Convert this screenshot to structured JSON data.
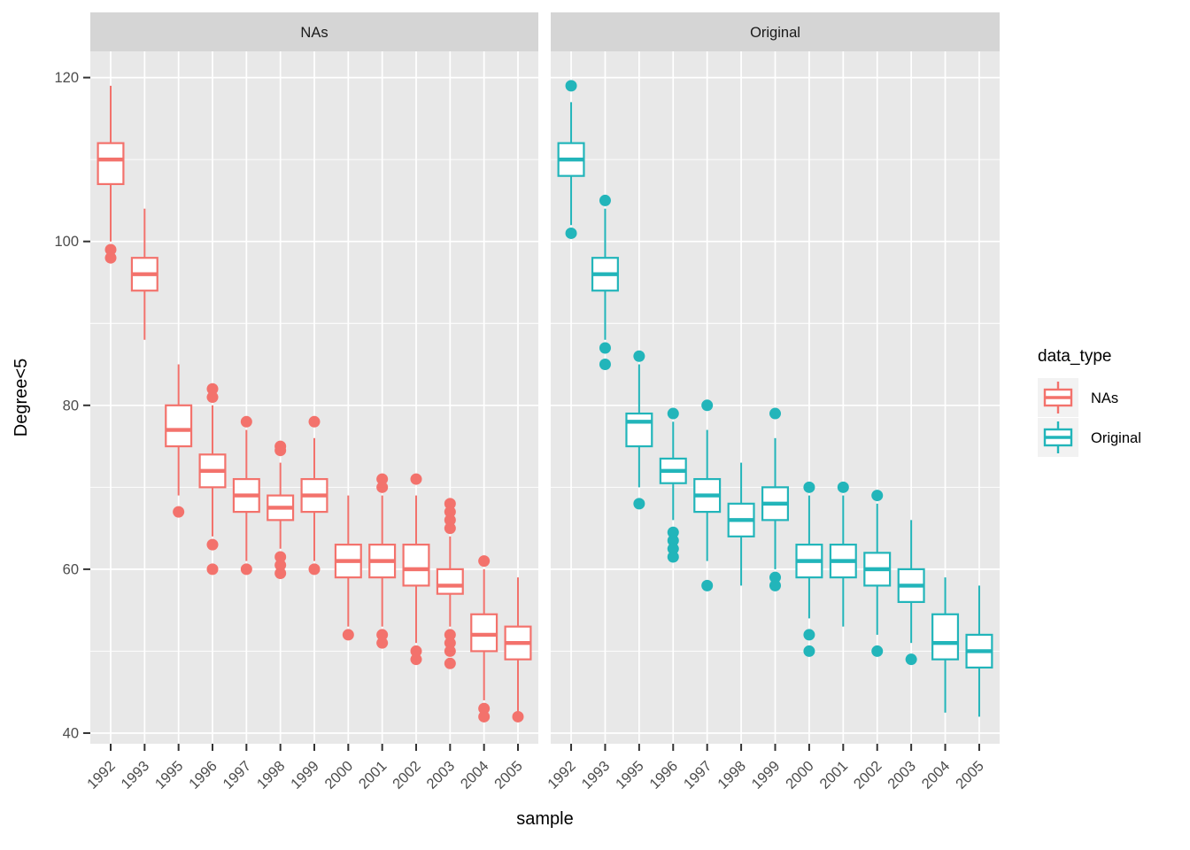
{
  "figure": {
    "background": "#ffffff"
  },
  "chart_data": {
    "type": "boxplot",
    "xlabel": "sample",
    "ylabel": "Degree<5",
    "categories": [
      "1992",
      "1993",
      "1995",
      "1996",
      "1997",
      "1998",
      "1999",
      "2000",
      "2001",
      "2002",
      "2003",
      "2004",
      "2005"
    ],
    "y_ticks": [
      40,
      60,
      80,
      100,
      120
    ],
    "y_minor_ticks": [
      50,
      70,
      90,
      110
    ],
    "ylim": [
      38.7,
      123.2
    ],
    "grid": "on",
    "legend_position": "right",
    "legend": {
      "title": "data_type",
      "entries": [
        {
          "label": "NAs",
          "color": "#F3726C"
        },
        {
          "label": "Original",
          "color": "#22B5BA"
        }
      ]
    },
    "facets": [
      {
        "label": "NAs",
        "color": "#F3726C",
        "boxes": [
          {
            "category": "1992",
            "low": 100,
            "q1": 107,
            "median": 110,
            "q3": 112,
            "high": 119,
            "outliers": [
              99,
              98
            ]
          },
          {
            "category": "1993",
            "low": 88,
            "q1": 94,
            "median": 96,
            "q3": 98,
            "high": 104,
            "outliers": []
          },
          {
            "category": "1995",
            "low": 69,
            "q1": 75,
            "median": 77,
            "q3": 80,
            "high": 85,
            "outliers": [
              67
            ]
          },
          {
            "category": "1996",
            "low": 64,
            "q1": 70,
            "median": 72,
            "q3": 74,
            "high": 80,
            "outliers": [
              82,
              81,
              63,
              60
            ]
          },
          {
            "category": "1997",
            "low": 61,
            "q1": 67,
            "median": 69,
            "q3": 71,
            "high": 77,
            "outliers": [
              78,
              60
            ]
          },
          {
            "category": "1998",
            "low": 62.5,
            "q1": 66,
            "median": 67.5,
            "q3": 69,
            "high": 73,
            "outliers": [
              75,
              74.5,
              61.5,
              60.5,
              59.5
            ]
          },
          {
            "category": "1999",
            "low": 61,
            "q1": 67,
            "median": 69,
            "q3": 71,
            "high": 76,
            "outliers": [
              78,
              60
            ]
          },
          {
            "category": "2000",
            "low": 53,
            "q1": 59,
            "median": 61,
            "q3": 63,
            "high": 69,
            "outliers": [
              52
            ]
          },
          {
            "category": "2001",
            "low": 53,
            "q1": 59,
            "median": 61,
            "q3": 63,
            "high": 69,
            "outliers": [
              71,
              70,
              52,
              51
            ]
          },
          {
            "category": "2002",
            "low": 51,
            "q1": 58,
            "median": 60,
            "q3": 63,
            "high": 69,
            "outliers": [
              71,
              50,
              49
            ]
          },
          {
            "category": "2003",
            "low": 53,
            "q1": 57,
            "median": 58,
            "q3": 60,
            "high": 64,
            "outliers": [
              68,
              67,
              66,
              65,
              52,
              51,
              50,
              48.5
            ]
          },
          {
            "category": "2004",
            "low": 44,
            "q1": 50,
            "median": 52,
            "q3": 54.5,
            "high": 60,
            "outliers": [
              61,
              43,
              42
            ]
          },
          {
            "category": "2005",
            "low": 42.5,
            "q1": 49,
            "median": 51,
            "q3": 53,
            "high": 59,
            "outliers": [
              42
            ]
          }
        ]
      },
      {
        "label": "Original",
        "color": "#22B5BA",
        "boxes": [
          {
            "category": "1992",
            "low": 102,
            "q1": 108,
            "median": 110,
            "q3": 112,
            "high": 117,
            "outliers": [
              119,
              101
            ]
          },
          {
            "category": "1993",
            "low": 88,
            "q1": 94,
            "median": 96,
            "q3": 98,
            "high": 104,
            "outliers": [
              105,
              87,
              85
            ]
          },
          {
            "category": "1995",
            "low": 70,
            "q1": 75,
            "median": 78,
            "q3": 79,
            "high": 85,
            "outliers": [
              86,
              68
            ]
          },
          {
            "category": "1996",
            "low": 66,
            "q1": 70.5,
            "median": 72,
            "q3": 73.5,
            "high": 78,
            "outliers": [
              79,
              64.5,
              63.5,
              62.5,
              61.5
            ]
          },
          {
            "category": "1997",
            "low": 61,
            "q1": 67,
            "median": 69,
            "q3": 71,
            "high": 77,
            "outliers": [
              80,
              58
            ]
          },
          {
            "category": "1998",
            "low": 58,
            "q1": 64,
            "median": 66,
            "q3": 68,
            "high": 73,
            "outliers": []
          },
          {
            "category": "1999",
            "low": 60,
            "q1": 66,
            "median": 68,
            "q3": 70,
            "high": 76,
            "outliers": [
              79,
              59,
              58
            ]
          },
          {
            "category": "2000",
            "low": 54,
            "q1": 59,
            "median": 61,
            "q3": 63,
            "high": 69,
            "outliers": [
              70,
              52,
              50
            ]
          },
          {
            "category": "2001",
            "low": 53,
            "q1": 59,
            "median": 61,
            "q3": 63,
            "high": 69,
            "outliers": [
              70
            ]
          },
          {
            "category": "2002",
            "low": 52,
            "q1": 58,
            "median": 60,
            "q3": 62,
            "high": 68,
            "outliers": [
              69,
              50
            ]
          },
          {
            "category": "2003",
            "low": 51,
            "q1": 56,
            "median": 58,
            "q3": 60,
            "high": 66,
            "outliers": [
              49
            ]
          },
          {
            "category": "2004",
            "low": 42.5,
            "q1": 49,
            "median": 51,
            "q3": 54.5,
            "high": 59,
            "outliers": []
          },
          {
            "category": "2005",
            "low": 42,
            "q1": 48,
            "median": 50,
            "q3": 52,
            "high": 58,
            "outliers": []
          }
        ]
      }
    ]
  },
  "theme": {
    "panel_bg": "#E8E8E8",
    "strip_bg": "#D5D5D5",
    "grid_color": "#FFFFFF",
    "box_fill": "#FFFFFF",
    "tick_color": "#333333",
    "axis_text_color": "#4D4D4D",
    "strip_text_color": "#1A1A1A",
    "title_color": "#000000",
    "legend_key_bg": "#F2F2F2"
  }
}
